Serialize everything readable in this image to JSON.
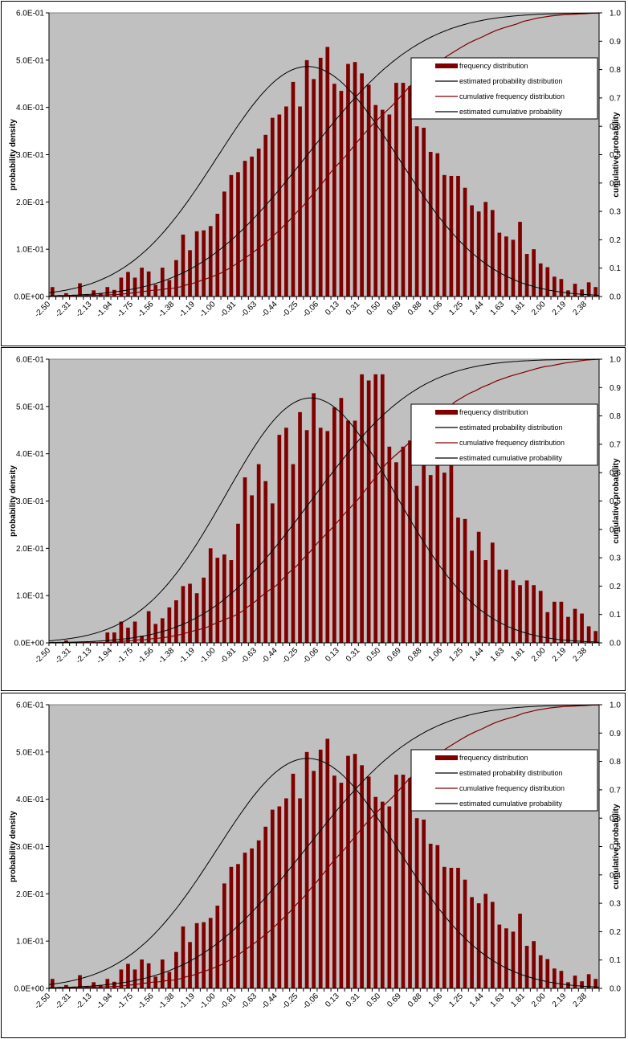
{
  "colors": {
    "plot_background": "#c0c0c0",
    "bar": "#800000",
    "estimated_line": "#000000",
    "cumulative_freq_line": "#800000"
  },
  "chart_data": [
    {
      "type": "bar",
      "title": "",
      "xlabel": "",
      "ylabel": "probability density",
      "y2label": "cumulative probability",
      "ylim": [
        0,
        0.6
      ],
      "y2lim": [
        0,
        1.0
      ],
      "yticks": [
        "0.0E+00",
        "1.0E-01",
        "2.0E-01",
        "3.0E-01",
        "4.0E-01",
        "5.0E-01",
        "6.0E-01"
      ],
      "y2ticks": [
        "0",
        "0.1",
        "0.2",
        "0.3",
        "0.4",
        "0.5",
        "0.6",
        "0.7",
        "0.8",
        "0.9",
        "1.0"
      ],
      "xtick_labels": [
        "-2.50",
        "-2.31",
        "-2.13",
        "-1.94",
        "-1.75",
        "-1.56",
        "-1.38",
        "-1.19",
        "-1.00",
        "-0.81",
        "-0.63",
        "-0.44",
        "-0.25",
        "-0.06",
        "0.13",
        "0.31",
        "0.50",
        "0.69",
        "0.88",
        "1.06",
        "1.25",
        "1.44",
        "1.63",
        "1.81",
        "2.00",
        "2.19",
        "2.38"
      ],
      "legend": [
        "frequency distribution",
        "estimated probability distribution",
        "cumulative frequency distribution",
        "estimated cumulative probability"
      ],
      "legend_position": "top-right",
      "grid": false,
      "x_range": [
        -2.5,
        2.5
      ],
      "bin_width": 0.0625,
      "normal_fit": {
        "mean": -0.15,
        "sd": 0.82
      },
      "series": [
        {
          "name": "frequency distribution",
          "values": [
            0.02,
            0.003,
            0.007,
            0.003,
            0.028,
            0.004,
            0.013,
            0.007,
            0.02,
            0.014,
            0.04,
            0.052,
            0.04,
            0.061,
            0.053,
            0.025,
            0.061,
            0.035,
            0.077,
            0.131,
            0.098,
            0.138,
            0.14,
            0.149,
            0.175,
            0.222,
            0.257,
            0.263,
            0.287,
            0.296,
            0.313,
            0.342,
            0.378,
            0.385,
            0.402,
            0.454,
            0.402,
            0.5,
            0.46,
            0.505,
            0.528,
            0.45,
            0.435,
            0.492,
            0.496,
            0.472,
            0.448,
            0.405,
            0.395,
            0.385,
            0.452,
            0.452,
            0.445,
            0.36,
            0.357,
            0.306,
            0.303,
            0.257,
            0.255,
            0.255,
            0.23,
            0.193,
            0.18,
            0.2,
            0.183,
            0.135,
            0.127,
            0.12,
            0.158,
            0.09,
            0.1,
            0.07,
            0.062,
            0.042,
            0.037,
            0.013,
            0.027,
            0.015,
            0.03,
            0.02
          ]
        }
      ]
    },
    {
      "type": "bar",
      "title": "",
      "xlabel": "",
      "ylabel": "probability density",
      "y2label": "cumulative probability",
      "ylim": [
        0,
        0.6
      ],
      "y2lim": [
        0,
        1.0
      ],
      "yticks": [
        "0.0E+00",
        "1.0E-01",
        "2.0E-01",
        "3.0E-01",
        "4.0E-01",
        "5.0E-01",
        "6.0E-01"
      ],
      "y2ticks": [
        "0",
        "0.1",
        "0.2",
        "0.3",
        "0.4",
        "0.5",
        "0.6",
        "0.7",
        "0.8",
        "0.9",
        "1.0"
      ],
      "xtick_labels": [
        "-2.50",
        "-2.31",
        "-2.13",
        "-1.94",
        "-1.75",
        "-1.56",
        "-1.38",
        "-1.19",
        "-1.00",
        "-0.81",
        "-0.63",
        "-0.44",
        "-0.25",
        "-0.06",
        "0.13",
        "0.31",
        "0.50",
        "0.69",
        "0.88",
        "1.06",
        "1.25",
        "1.44",
        "1.63",
        "1.81",
        "2.00",
        "2.19",
        "2.38"
      ],
      "legend": [
        "frequency distribution",
        "estimated probability distribution",
        "cumulative frequency distribution",
        "estimated cumulative probability"
      ],
      "legend_position": "top-right",
      "grid": false,
      "x_range": [
        -2.5,
        2.5
      ],
      "bin_width": 0.0625,
      "normal_fit": {
        "mean": -0.12,
        "sd": 0.77
      },
      "series": [
        {
          "name": "frequency distribution",
          "values": [
            0.002,
            0.002,
            0.005,
            0.002,
            0.002,
            0.002,
            0.002,
            0.002,
            0.022,
            0.022,
            0.045,
            0.032,
            0.045,
            0.015,
            0.067,
            0.04,
            0.052,
            0.075,
            0.09,
            0.12,
            0.125,
            0.105,
            0.138,
            0.2,
            0.18,
            0.187,
            0.175,
            0.252,
            0.35,
            0.312,
            0.378,
            0.342,
            0.295,
            0.44,
            0.455,
            0.378,
            0.488,
            0.45,
            0.528,
            0.455,
            0.448,
            0.498,
            0.518,
            0.47,
            0.47,
            0.568,
            0.555,
            0.568,
            0.568,
            0.415,
            0.382,
            0.415,
            0.428,
            0.332,
            0.396,
            0.355,
            0.502,
            0.36,
            0.415,
            0.265,
            0.262,
            0.195,
            0.235,
            0.175,
            0.212,
            0.155,
            0.155,
            0.132,
            0.122,
            0.132,
            0.122,
            0.11,
            0.065,
            0.087,
            0.087,
            0.055,
            0.072,
            0.062,
            0.035,
            0.025
          ]
        }
      ]
    },
    {
      "type": "bar",
      "title": "",
      "xlabel": "",
      "ylabel": "probability density",
      "y2label": "cumulative probability",
      "ylim": [
        0,
        0.6
      ],
      "y2lim": [
        0,
        1.0
      ],
      "yticks": [
        "0.0E+00",
        "1.0E-01",
        "2.0E-01",
        "3.0E-01",
        "4.0E-01",
        "5.0E-01",
        "6.0E-01"
      ],
      "y2ticks": [
        "0",
        "0.1",
        "0.2",
        "0.3",
        "0.4",
        "0.5",
        "0.6",
        "0.7",
        "0.8",
        "0.9",
        "1.0"
      ],
      "xtick_labels": [
        "-2.50",
        "-2.31",
        "-2.13",
        "-1.94",
        "-1.75",
        "-1.56",
        "-1.38",
        "-1.19",
        "-1.00",
        "-0.81",
        "-0.63",
        "-0.44",
        "-0.25",
        "-0.06",
        "0.13",
        "0.31",
        "0.50",
        "0.69",
        "0.88",
        "1.06",
        "1.25",
        "1.44",
        "1.63",
        "1.81",
        "2.00",
        "2.19",
        "2.38"
      ],
      "legend": [
        "frequency distribution",
        "estimated probability distribution",
        "cumulative frequency distribution",
        "estimated cumulative probability"
      ],
      "legend_position": "top-right",
      "grid": false,
      "x_range": [
        -2.5,
        2.5
      ],
      "bin_width": 0.0625,
      "normal_fit": {
        "mean": -0.15,
        "sd": 0.82
      },
      "series": [
        {
          "name": "frequency distribution",
          "values": [
            0.02,
            0.003,
            0.007,
            0.003,
            0.028,
            0.004,
            0.013,
            0.007,
            0.02,
            0.014,
            0.04,
            0.052,
            0.04,
            0.061,
            0.053,
            0.025,
            0.061,
            0.035,
            0.077,
            0.131,
            0.098,
            0.138,
            0.14,
            0.149,
            0.175,
            0.222,
            0.257,
            0.263,
            0.287,
            0.296,
            0.313,
            0.342,
            0.378,
            0.385,
            0.402,
            0.454,
            0.402,
            0.5,
            0.46,
            0.505,
            0.528,
            0.45,
            0.435,
            0.492,
            0.496,
            0.472,
            0.448,
            0.405,
            0.395,
            0.385,
            0.452,
            0.452,
            0.445,
            0.36,
            0.357,
            0.306,
            0.303,
            0.257,
            0.255,
            0.255,
            0.23,
            0.193,
            0.18,
            0.2,
            0.183,
            0.135,
            0.127,
            0.12,
            0.158,
            0.09,
            0.1,
            0.07,
            0.062,
            0.042,
            0.037,
            0.013,
            0.027,
            0.015,
            0.03,
            0.02
          ]
        }
      ]
    }
  ]
}
